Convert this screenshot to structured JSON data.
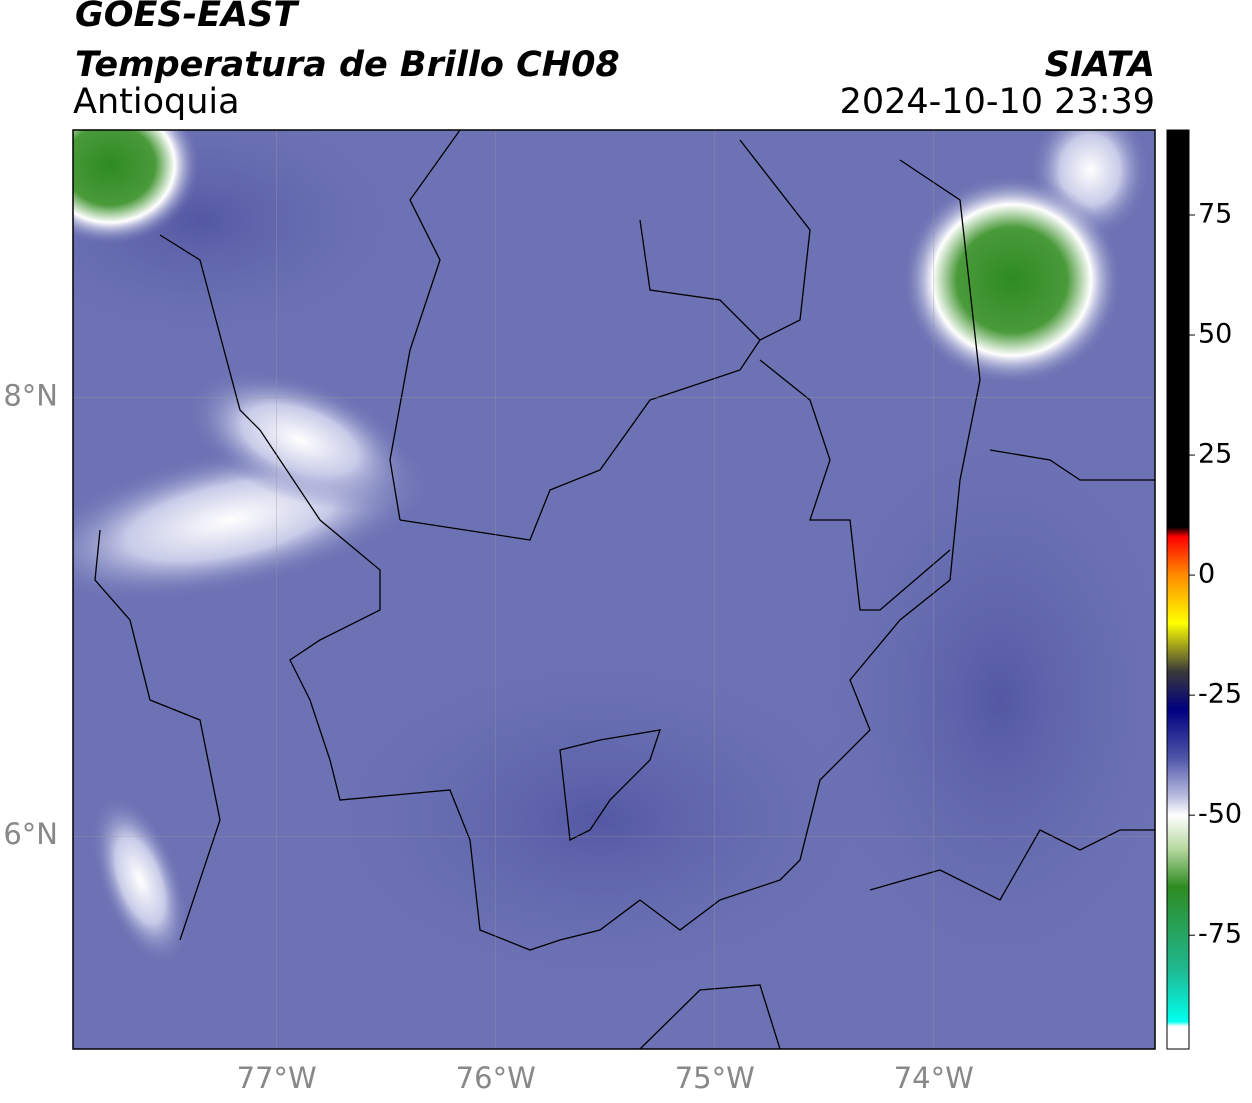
{
  "header": {
    "title": "GOES-EAST",
    "subtitle": "Temperatura de Brillo CH08",
    "region": "Antioquia",
    "source": "SIATA",
    "timestamp": "2024-10-10 23:39"
  },
  "map": {
    "xlim": [
      -77.93,
      -72.99
    ],
    "ylim": [
      5.03,
      9.22
    ],
    "xticks": [
      {
        "value": -77,
        "label": "77°W"
      },
      {
        "value": -76,
        "label": "76°W"
      },
      {
        "value": -75,
        "label": "75°W"
      },
      {
        "value": -74,
        "label": "74°W"
      }
    ],
    "yticks": [
      {
        "value": 8,
        "label": "8°N"
      },
      {
        "value": 6,
        "label": "6°N"
      }
    ],
    "grid": true
  },
  "colorbar": {
    "ylim": [
      -98.7,
      92.7
    ],
    "yticks": [
      75,
      50,
      25,
      0,
      -25,
      -50,
      -75
    ],
    "colormap": [
      [
        92.7,
        "#000000"
      ],
      [
        10,
        "#000000"
      ],
      [
        8,
        "#ff0000"
      ],
      [
        0,
        "#ff8c00"
      ],
      [
        -10,
        "#ffff00"
      ],
      [
        -20,
        "#3a3a3a"
      ],
      [
        -28,
        "#000080"
      ],
      [
        -38,
        "#4e55a8"
      ],
      [
        -46,
        "#b8bce0"
      ],
      [
        -50,
        "#ffffff"
      ],
      [
        -57,
        "#b6d8a0"
      ],
      [
        -65,
        "#2e8b22"
      ],
      [
        -82,
        "#20b890"
      ],
      [
        -93,
        "#00ffee"
      ],
      [
        -94,
        "#ffffff"
      ],
      [
        -98.7,
        "#ffffff"
      ]
    ]
  }
}
